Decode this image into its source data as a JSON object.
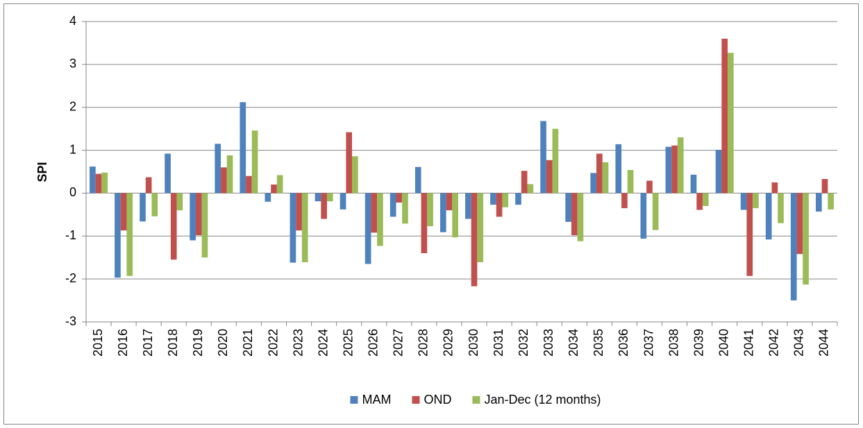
{
  "chart_data": {
    "type": "bar",
    "y_label": "SPI",
    "categories": [
      "2015",
      "2016",
      "2017",
      "2018",
      "2019",
      "2020",
      "2021",
      "2022",
      "2023",
      "2024",
      "2025",
      "2026",
      "2027",
      "2028",
      "2029",
      "2030",
      "2031",
      "2032",
      "2033",
      "2034",
      "2035",
      "2036",
      "2037",
      "2038",
      "2039",
      "2040",
      "2041",
      "2042",
      "2043",
      "2044"
    ],
    "series": [
      {
        "name": "MAM",
        "color": "#4f81bd",
        "values": [
          0.62,
          -1.97,
          -0.66,
          0.92,
          -1.1,
          1.15,
          2.12,
          -0.2,
          -1.62,
          -0.19,
          -0.38,
          -1.65,
          -0.55,
          0.61,
          -0.91,
          -0.6,
          -0.27,
          -0.27,
          1.68,
          -0.67,
          0.47,
          1.14,
          -1.06,
          1.08,
          0.43,
          1.01,
          -0.39,
          -1.08,
          -2.5,
          -0.43
        ]
      },
      {
        "name": "OND",
        "color": "#c0504d",
        "values": [
          0.45,
          -0.87,
          0.37,
          -1.55,
          -0.98,
          0.6,
          0.4,
          0.2,
          -0.87,
          -0.6,
          1.42,
          -0.92,
          -0.22,
          -1.4,
          -0.4,
          -2.17,
          -0.55,
          0.52,
          0.77,
          -0.98,
          0.92,
          -0.35,
          0.29,
          1.11,
          -0.39,
          3.6,
          -1.93,
          0.25,
          -1.42,
          0.33
        ]
      },
      {
        "name": "Jan-Dec (12 months)",
        "color": "#9bbb59",
        "values": [
          0.48,
          -1.93,
          -0.54,
          -0.4,
          -1.5,
          0.88,
          1.46,
          0.42,
          -1.61,
          -0.19,
          0.86,
          -1.23,
          -0.71,
          -0.77,
          -1.03,
          -1.61,
          -0.33,
          0.21,
          1.5,
          -1.12,
          0.72,
          0.54,
          -0.86,
          1.3,
          -0.3,
          3.27,
          -0.35,
          -0.7,
          -2.13,
          -0.38
        ]
      }
    ],
    "ylim": [
      -3,
      4
    ],
    "yticks": [
      -3,
      -2,
      -1,
      0,
      1,
      2,
      3,
      4
    ],
    "grid": true
  }
}
